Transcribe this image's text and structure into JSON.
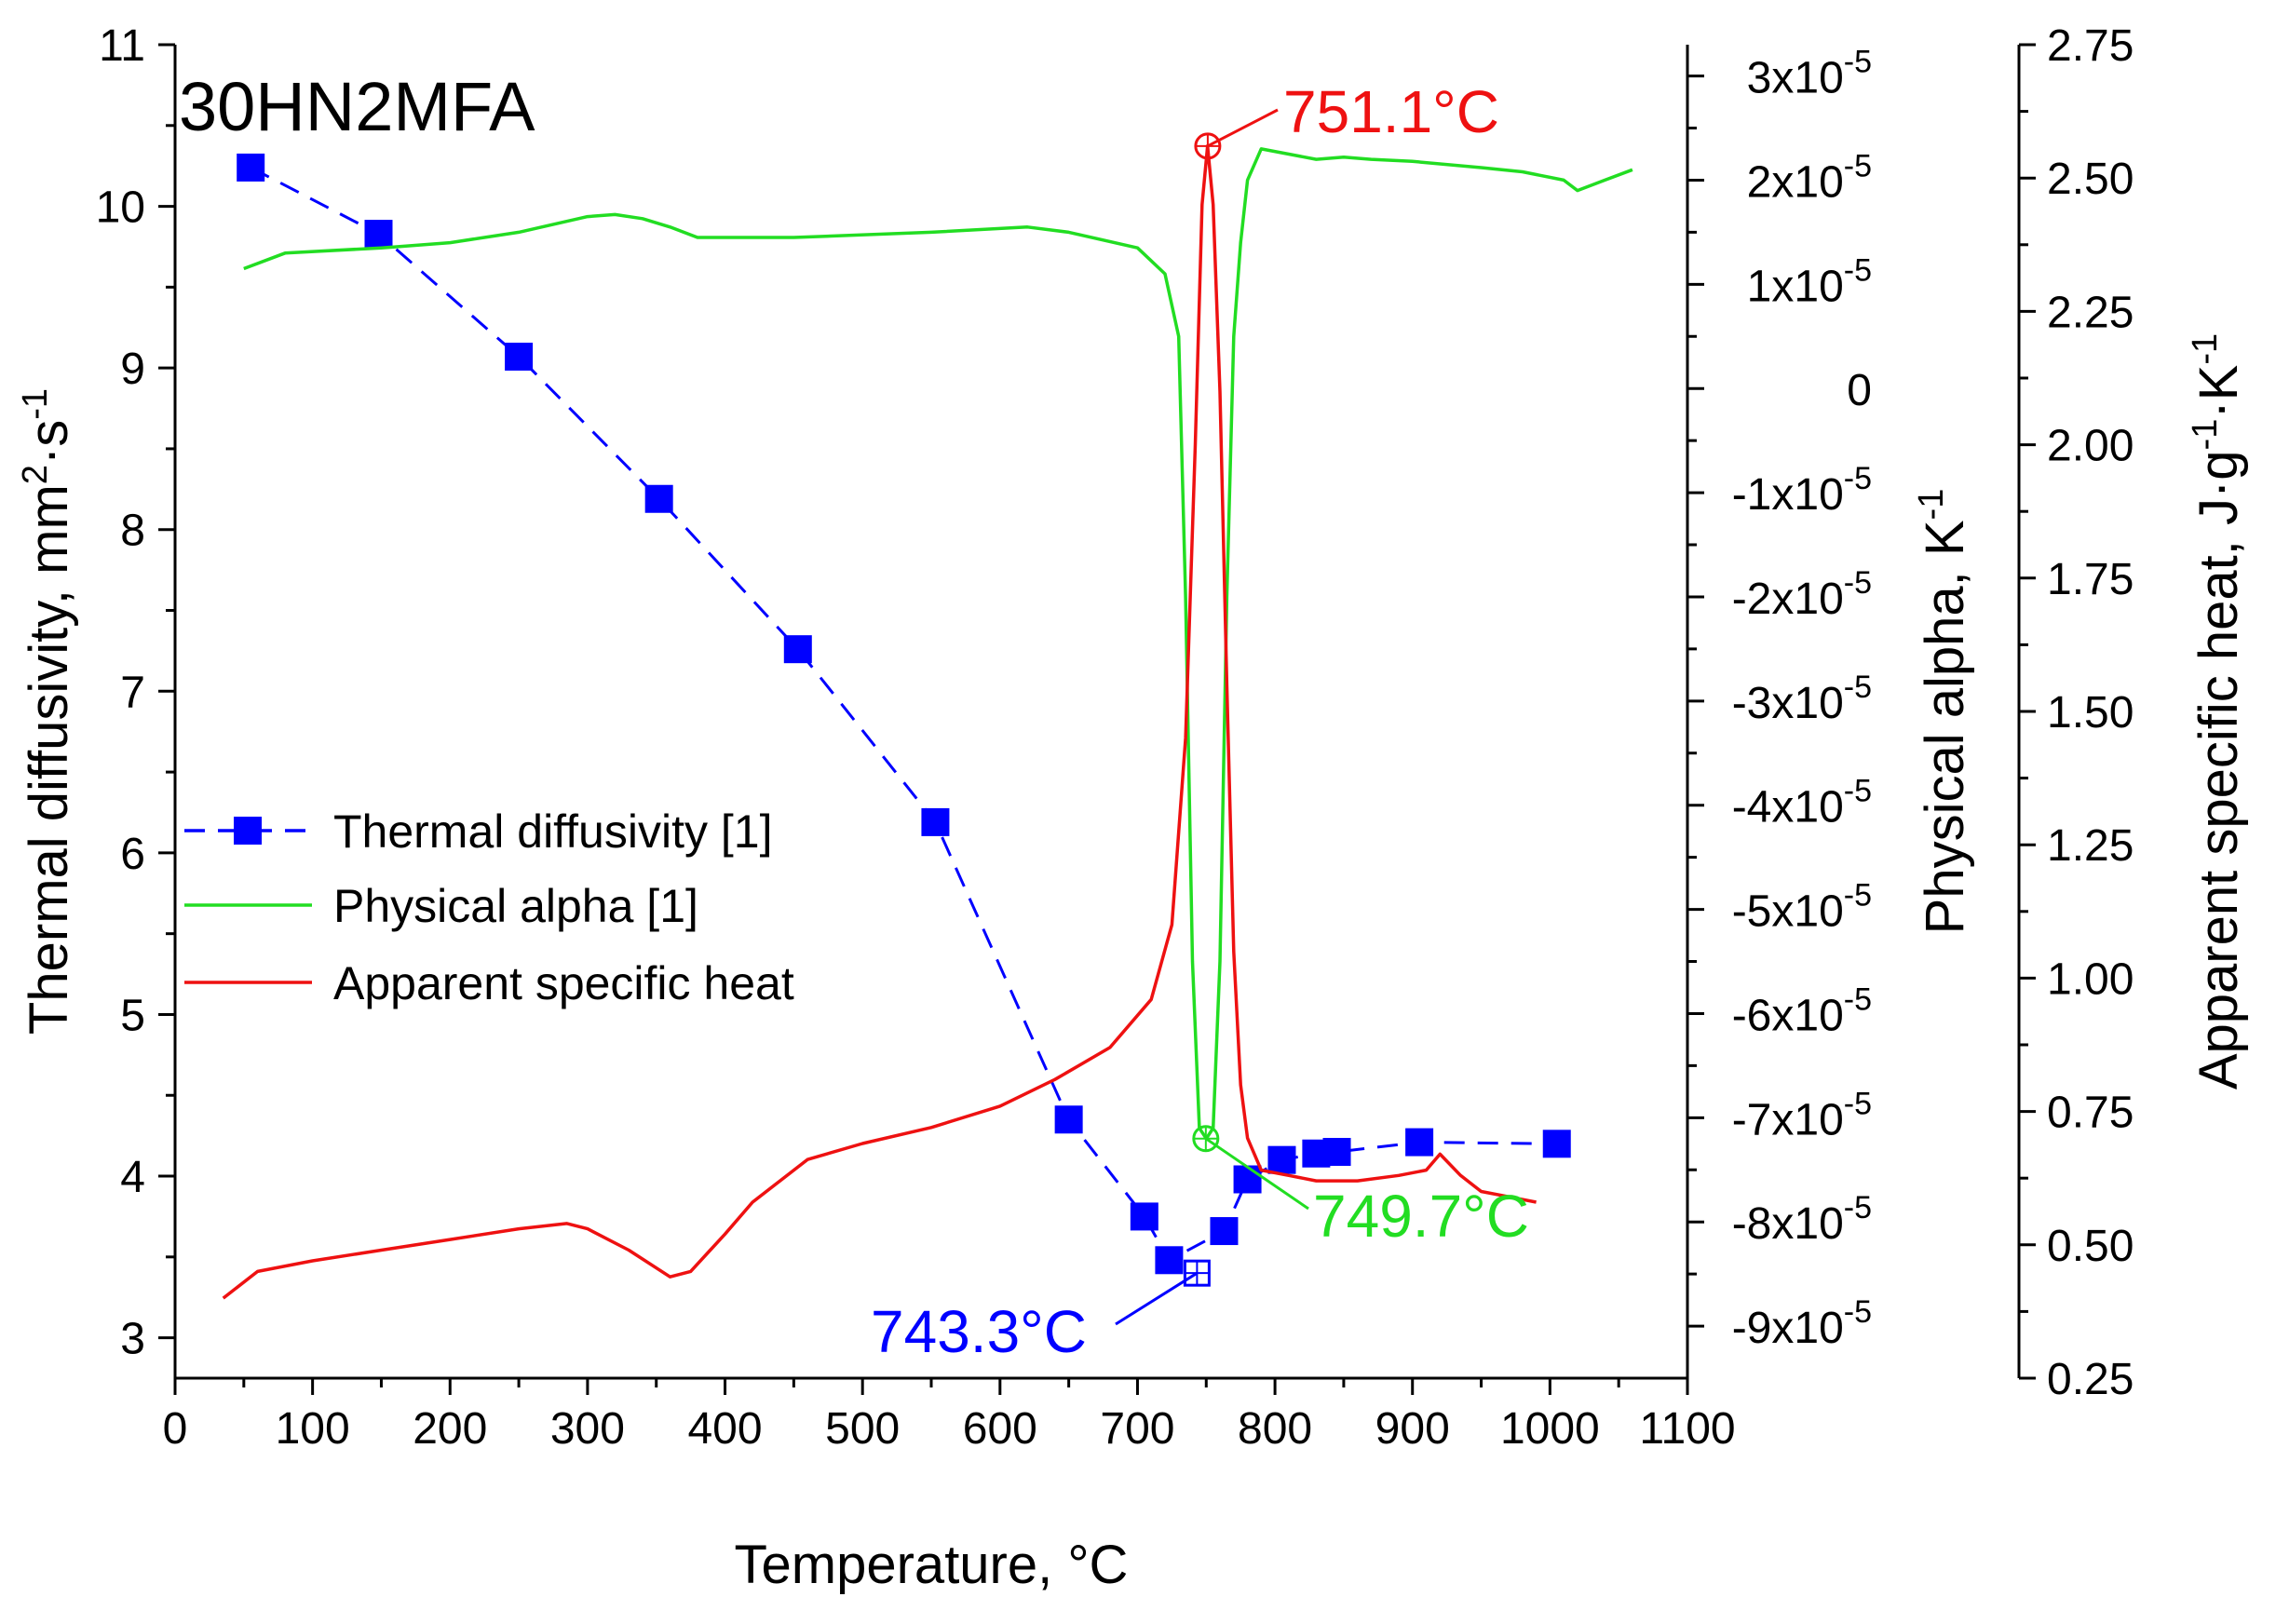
{
  "chart_data": {
    "type": "line",
    "sample_label": "30HN2MFA",
    "x_axis": {
      "title": "Temperature, °C",
      "range": [
        0,
        1100
      ],
      "ticks": [
        0,
        100,
        200,
        300,
        400,
        500,
        600,
        700,
        800,
        900,
        1000,
        1100
      ],
      "tick_labels": [
        "0",
        "100",
        "200",
        "300",
        "400",
        "500",
        "600",
        "700",
        "800",
        "900",
        "1000",
        "1100"
      ]
    },
    "y_left": {
      "title": "Thermal diffusivity, mm",
      "title_sup1": "2",
      "title_mid": "·s",
      "title_sup2": "-1",
      "range": [
        2.75,
        11
      ],
      "ticks": [
        3,
        4,
        5,
        6,
        7,
        8,
        9,
        10,
        11
      ],
      "tick_labels": [
        "3",
        "4",
        "5",
        "6",
        "7",
        "8",
        "9",
        "10",
        "11"
      ]
    },
    "y_mid": {
      "title": "Physical alpha, K",
      "title_sup": "-1",
      "range": [
        -9.5e-05,
        3.3e-05
      ],
      "ticks": [
        3e-05,
        2e-05,
        1e-05,
        0,
        -1e-05,
        -2e-05,
        -3e-05,
        -4e-05,
        -5e-05,
        -6e-05,
        -7e-05,
        -8e-05,
        -9e-05
      ],
      "tick_mantissa": [
        "3x10",
        "2x10",
        "1x10",
        "0",
        "-1x10",
        "-2x10",
        "-3x10",
        "-4x10",
        "-5x10",
        "-6x10",
        "-7x10",
        "-8x10",
        "-9x10"
      ],
      "tick_exponent": "-5"
    },
    "y_right": {
      "title": "Apparent specific heat, J·g",
      "title_sup1": "-1",
      "title_mid": "·K",
      "title_sup2": "-1",
      "range": [
        0.25,
        2.75
      ],
      "ticks": [
        0.25,
        0.5,
        0.75,
        1.0,
        1.25,
        1.5,
        1.75,
        2.0,
        2.25,
        2.5,
        2.75
      ],
      "tick_labels": [
        "0.25",
        "0.50",
        "0.75",
        "1.00",
        "1.25",
        "1.50",
        "1.75",
        "2.00",
        "2.25",
        "2.50",
        "2.75"
      ]
    },
    "series": [
      {
        "name": "Thermal diffusivity [1]",
        "axis": "left",
        "color": "#0000ff",
        "style": "dashed-square-markers",
        "x": [
          55,
          148,
          250,
          352,
          453,
          553,
          650,
          705,
          723,
          763,
          780,
          805,
          830,
          845,
          905,
          1005
        ],
        "y": [
          10.24,
          9.83,
          9.07,
          8.19,
          7.26,
          6.19,
          4.35,
          3.75,
          3.48,
          3.66,
          3.98,
          4.1,
          4.14,
          4.15,
          4.21,
          4.2
        ],
        "markers": true
      },
      {
        "name": "Physical alpha [1]",
        "axis": "mid",
        "color": "#22dd22",
        "style": "solid",
        "x": [
          50,
          80,
          150,
          200,
          250,
          300,
          320,
          340,
          360,
          380,
          450,
          550,
          620,
          650,
          700,
          720,
          730,
          735,
          740,
          745,
          750,
          755,
          760,
          765,
          770,
          775,
          780,
          790,
          810,
          830,
          850,
          870,
          900,
          950,
          980,
          1010,
          1020,
          1040,
          1060
        ],
        "y": [
          1.15e-05,
          1.3e-05,
          1.35e-05,
          1.4e-05,
          1.5e-05,
          1.65e-05,
          1.67e-05,
          1.63e-05,
          1.55e-05,
          1.45e-05,
          1.45e-05,
          1.5e-05,
          1.55e-05,
          1.5e-05,
          1.35e-05,
          1.1e-05,
          5e-06,
          -2e-05,
          -5.5e-05,
          -7.1e-05,
          -7.2e-05,
          -7.1e-05,
          -5.5e-05,
          -2e-05,
          5e-06,
          1.4e-05,
          2e-05,
          2.3e-05,
          2.25e-05,
          2.2e-05,
          2.22e-05,
          2.2e-05,
          2.18e-05,
          2.12e-05,
          2.08e-05,
          2e-05,
          1.9e-05,
          2e-05,
          2.1e-05
        ]
      },
      {
        "name": "Apparent specific heat",
        "axis": "right",
        "color": "#ee1111",
        "style": "solid",
        "x": [
          35,
          60,
          100,
          150,
          200,
          250,
          285,
          300,
          330,
          360,
          375,
          400,
          420,
          440,
          460,
          500,
          550,
          600,
          640,
          680,
          710,
          725,
          735,
          742,
          747,
          751,
          755,
          760,
          765,
          770,
          775,
          780,
          790,
          810,
          830,
          860,
          890,
          910,
          920,
          935,
          950,
          970,
          990
        ],
        "y": [
          0.4,
          0.45,
          0.47,
          0.49,
          0.51,
          0.53,
          0.54,
          0.53,
          0.49,
          0.44,
          0.45,
          0.52,
          0.58,
          0.62,
          0.66,
          0.69,
          0.72,
          0.76,
          0.81,
          0.87,
          0.96,
          1.1,
          1.45,
          2.0,
          2.45,
          2.56,
          2.45,
          2.1,
          1.55,
          1.05,
          0.8,
          0.7,
          0.64,
          0.63,
          0.62,
          0.62,
          0.63,
          0.64,
          0.67,
          0.63,
          0.6,
          0.59,
          0.58
        ]
      }
    ],
    "legend": {
      "placement": "center-left",
      "entries": [
        "Thermal diffusivity [1]",
        "Physical alpha [1]",
        "Apparent specific heat"
      ]
    },
    "annotations": [
      {
        "text": "751.1°C",
        "color": "#ee1111",
        "axis": "right",
        "x": 751.1,
        "y": 2.56
      },
      {
        "text": "749.7°C",
        "color": "#22dd22",
        "axis": "mid",
        "x": 749.7,
        "y": -7.2e-05
      },
      {
        "text": "743.3°C",
        "color": "#0000ff",
        "axis": "left",
        "x": 743.3,
        "y": 3.4
      }
    ]
  }
}
